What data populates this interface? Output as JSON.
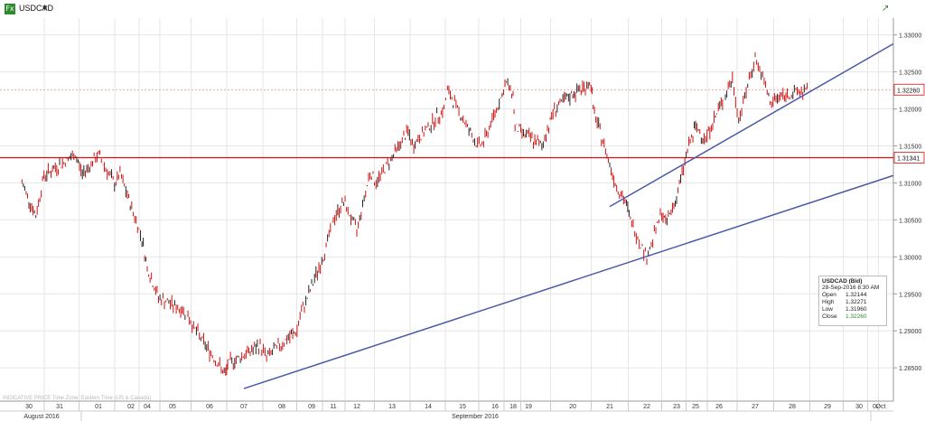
{
  "header": {
    "symbol": "USDCAD",
    "symbol_icon": "fx-badge-icon",
    "dropdown_icon": "caret-down-icon",
    "expand_icon": "expand-arrow-icon"
  },
  "footer_note": "INDICATIVE PRICE   Time Zone: Eastern Time (US & Canada)",
  "tooltip": {
    "title": "USDCAD (Bid)",
    "time": "28-Sep-2016 8:30 AM",
    "rows": [
      {
        "k": "Open",
        "v": "1.32144"
      },
      {
        "k": "High",
        "v": "1.32271"
      },
      {
        "k": "Low",
        "v": "1.31960"
      },
      {
        "k": "Close",
        "v": "1.32260"
      }
    ]
  },
  "colors": {
    "candle": "#cc1111",
    "trendline": "#4a5aa8",
    "horizontal_line": "#dd1111",
    "price_marker_border": "#dd1111",
    "grid": "#e6e6e6",
    "tooltip_close": "#2e8b2e"
  },
  "chart_data": {
    "type": "candlestick",
    "title": "USDCAD",
    "y_axis_side": "right",
    "ylim": [
      1.2805,
      1.3335
    ],
    "y_ticks": [
      "1.33000",
      "1.32500",
      "1.32000",
      "1.31500",
      "1.31000",
      "1.30500",
      "1.30000",
      "1.29500",
      "1.29000",
      "1.28500"
    ],
    "y_tick_values": [
      1.33,
      1.325,
      1.32,
      1.315,
      1.31,
      1.305,
      1.3,
      1.295,
      1.29,
      1.285
    ],
    "x_ticks": [
      "30",
      "31",
      "01",
      "02",
      "04",
      "05",
      "06",
      "07",
      "08",
      "09",
      "11",
      "12",
      "13",
      "14",
      "15",
      "16",
      "18",
      "19",
      "20",
      "21",
      "22",
      "23",
      "25",
      "26",
      "27",
      "28",
      "29",
      "30",
      "02",
      "Oct"
    ],
    "months": [
      "August 2016",
      "September 2016"
    ],
    "price_markers": [
      {
        "label": "1.32260",
        "value": 1.3226
      },
      {
        "label": "1.31341",
        "value": 1.31341
      }
    ],
    "horizontal_line": 1.31341,
    "dashed_line": 1.3226,
    "trendlines": [
      {
        "from_date": "07 Sep",
        "from_value": 1.2822,
        "to_date": "02 Oct",
        "to_value": 1.311
      },
      {
        "from_date": "21 Sep",
        "from_value": 1.3068,
        "to_date": "02 Oct",
        "to_value": 1.3288
      }
    ],
    "series": [
      {
        "date": "30 Aug",
        "value": 1.31
      },
      {
        "date": "30 Aug",
        "value": 1.3055
      },
      {
        "date": "31 Aug",
        "value": 1.311
      },
      {
        "date": "31 Aug",
        "value": 1.3138
      },
      {
        "date": "01 Sep",
        "value": 1.3112
      },
      {
        "date": "01 Sep",
        "value": 1.3138
      },
      {
        "date": "01 Sep",
        "value": 1.3098
      },
      {
        "date": "02 Sep",
        "value": 1.3112
      },
      {
        "date": "02 Sep",
        "value": 1.3025
      },
      {
        "date": "04 Sep",
        "value": 1.2985
      },
      {
        "date": "05 Sep",
        "value": 1.2945
      },
      {
        "date": "05 Sep",
        "value": 1.2925
      },
      {
        "date": "06 Sep",
        "value": 1.2905
      },
      {
        "date": "06 Sep",
        "value": 1.284
      },
      {
        "date": "07 Sep",
        "value": 1.2855
      },
      {
        "date": "07 Sep",
        "value": 1.288
      },
      {
        "date": "08 Sep",
        "value": 1.2865
      },
      {
        "date": "08 Sep",
        "value": 1.29
      },
      {
        "date": "09 Sep",
        "value": 1.292
      },
      {
        "date": "09 Sep",
        "value": 1.3
      },
      {
        "date": "11 Sep",
        "value": 1.305
      },
      {
        "date": "12 Sep",
        "value": 1.3075
      },
      {
        "date": "12 Sep",
        "value": 1.3035
      },
      {
        "date": "12 Sep",
        "value": 1.3115
      },
      {
        "date": "13 Sep",
        "value": 1.31
      },
      {
        "date": "13 Sep",
        "value": 1.317
      },
      {
        "date": "14 Sep",
        "value": 1.315
      },
      {
        "date": "14 Sep",
        "value": 1.32
      },
      {
        "date": "15 Sep",
        "value": 1.3225
      },
      {
        "date": "15 Sep",
        "value": 1.315
      },
      {
        "date": "16 Sep",
        "value": 1.3155
      },
      {
        "date": "16 Sep",
        "value": 1.3235
      },
      {
        "date": "18 Sep",
        "value": 1.322
      },
      {
        "date": "19 Sep",
        "value": 1.3175
      },
      {
        "date": "19 Sep",
        "value": 1.315
      },
      {
        "date": "20 Sep",
        "value": 1.32
      },
      {
        "date": "20 Sep",
        "value": 1.322
      },
      {
        "date": "20 Sep",
        "value": 1.3235
      },
      {
        "date": "21 Sep",
        "value": 1.32
      },
      {
        "date": "21 Sep",
        "value": 1.315
      },
      {
        "date": "21 Sep",
        "value": 1.31
      },
      {
        "date": "21 Sep",
        "value": 1.307
      },
      {
        "date": "22 Sep",
        "value": 1.3045
      },
      {
        "date": "22 Sep",
        "value": 1.3
      },
      {
        "date": "22 Sep",
        "value": 1.306
      },
      {
        "date": "23 Sep",
        "value": 1.3045
      },
      {
        "date": "23 Sep",
        "value": 1.308
      },
      {
        "date": "23 Sep",
        "value": 1.3145
      },
      {
        "date": "25 Sep",
        "value": 1.3175
      },
      {
        "date": "26 Sep",
        "value": 1.316
      },
      {
        "date": "26 Sep",
        "value": 1.324
      },
      {
        "date": "27 Sep",
        "value": 1.3185
      },
      {
        "date": "27 Sep",
        "value": 1.327
      },
      {
        "date": "27 Sep",
        "value": 1.3205
      },
      {
        "date": "28 Sep",
        "value": 1.3215
      },
      {
        "date": "28 Sep",
        "value": 1.3226
      }
    ]
  }
}
